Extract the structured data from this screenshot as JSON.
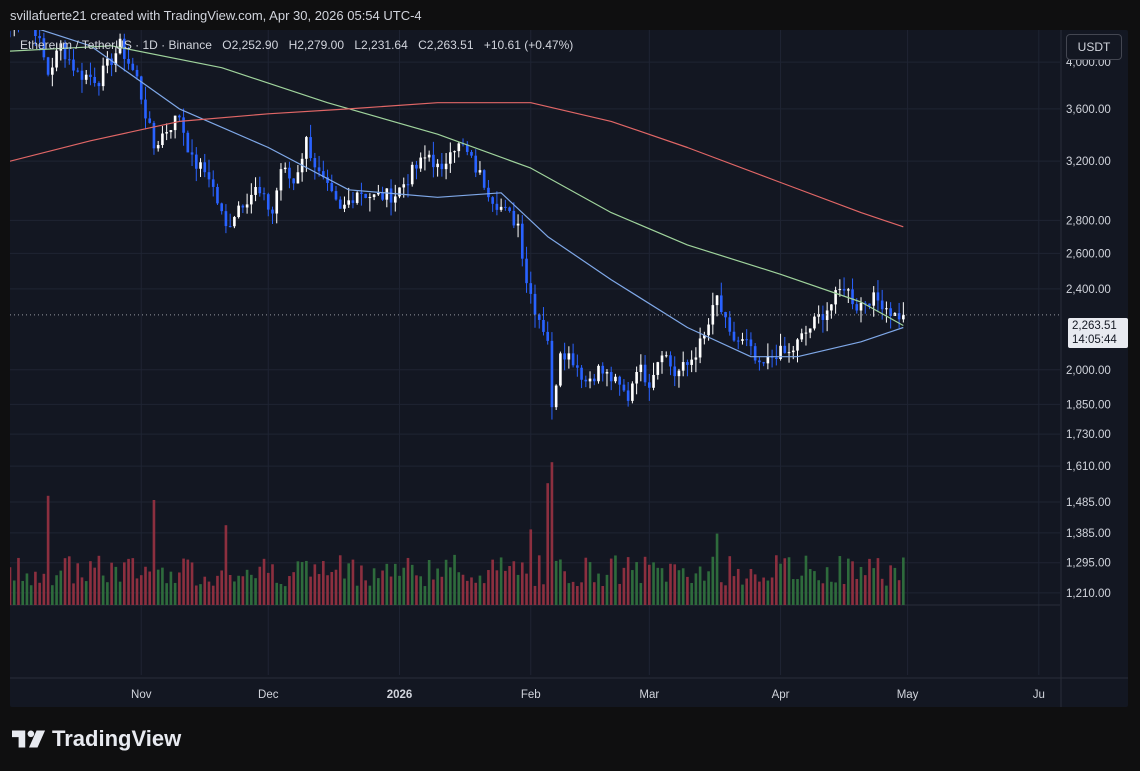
{
  "header": {
    "attribution": "svillafuerte21 created with TradingView.com, Apr 30, 2026 05:54 UTC-4"
  },
  "legend": {
    "symbol": "Ethereum / TetherUS · 1D · Binance",
    "open_label": "O",
    "open": "2,252.90",
    "high_label": "H",
    "high": "2,279.00",
    "low_label": "L",
    "low": "2,231.64",
    "close_label": "C",
    "close": "2,263.51",
    "change": "+10.61 (+0.47%)"
  },
  "currency": "USDT",
  "price_tag": {
    "price": "2,263.51",
    "countdown": "14:05:44"
  },
  "brand": {
    "name": "TradingView",
    "icon": "tradingview-logo-icon"
  },
  "colors": {
    "background": "#131722",
    "up": "#2962ff",
    "down": "#ffffff",
    "volume_up": "#2e6b3c",
    "volume_down": "#8c2f3f",
    "ma_fast": "#7fa8e8",
    "ma_mid": "#9fd39c",
    "ma_slow": "#e06666"
  },
  "chart_data": {
    "type": "candlestick",
    "scale": "log",
    "ylim": [
      1180,
      4300
    ],
    "y_ticks": [
      4000,
      3600,
      3200,
      2800,
      2600,
      2400,
      2000,
      1850,
      1730,
      1610,
      1485,
      1385,
      1295,
      1210
    ],
    "y_tick_labels": [
      "4,000.00",
      "3,600.00",
      "3,200.00",
      "2,800.00",
      "2,600.00",
      "2,400.00",
      "2,000.00",
      "1,850.00",
      "1,730.00",
      "1,610.00",
      "1,485.00",
      "1,385.00",
      "1,295.00",
      "1,210.00"
    ],
    "x_start": "2025-10-01",
    "x_end": "2026-06-06",
    "x_ticks": [
      {
        "date": "2025-11-01",
        "label": "Nov"
      },
      {
        "date": "2025-12-01",
        "label": "Dec"
      },
      {
        "date": "2026-01-01",
        "label": "2026"
      },
      {
        "date": "2026-02-01",
        "label": "Feb"
      },
      {
        "date": "2026-03-01",
        "label": "Mar"
      },
      {
        "date": "2026-04-01",
        "label": "Apr"
      },
      {
        "date": "2026-05-01",
        "label": "May"
      },
      {
        "date": "2026-06-01",
        "label": "Ju"
      }
    ],
    "last_price": 2263.51,
    "close_anchors": [
      [
        "2025-10-01",
        4350
      ],
      [
        "2025-10-06",
        4450
      ],
      [
        "2025-10-10",
        3900
      ],
      [
        "2025-10-13",
        4150
      ],
      [
        "2025-10-17",
        3900
      ],
      [
        "2025-10-22",
        3850
      ],
      [
        "2025-10-27",
        4150
      ],
      [
        "2025-10-31",
        3850
      ],
      [
        "2025-11-04",
        3300
      ],
      [
        "2025-11-06",
        3400
      ],
      [
        "2025-11-10",
        3550
      ],
      [
        "2025-11-13",
        3200
      ],
      [
        "2025-11-17",
        3100
      ],
      [
        "2025-11-21",
        2750
      ],
      [
        "2025-11-24",
        2900
      ],
      [
        "2025-11-28",
        3000
      ],
      [
        "2025-12-02",
        2850
      ],
      [
        "2025-12-04",
        3150
      ],
      [
        "2025-12-07",
        3050
      ],
      [
        "2025-12-10",
        3350
      ],
      [
        "2025-12-13",
        3100
      ],
      [
        "2025-12-18",
        2850
      ],
      [
        "2025-12-22",
        3000
      ],
      [
        "2025-12-26",
        2950
      ],
      [
        "2025-12-31",
        2970
      ],
      [
        "2026-01-04",
        3120
      ],
      [
        "2026-01-08",
        3250
      ],
      [
        "2026-01-11",
        3100
      ],
      [
        "2026-01-13",
        3320
      ],
      [
        "2026-01-16",
        3300
      ],
      [
        "2026-01-20",
        3100
      ],
      [
        "2026-01-23",
        2950
      ],
      [
        "2026-01-26",
        2850
      ],
      [
        "2026-01-29",
        2780
      ],
      [
        "2026-01-31",
        2450
      ],
      [
        "2026-02-02",
        2300
      ],
      [
        "2026-02-05",
        2150
      ],
      [
        "2026-02-06",
        1820
      ],
      [
        "2026-02-08",
        2100
      ],
      [
        "2026-02-11",
        2050
      ],
      [
        "2026-02-14",
        1950
      ],
      [
        "2026-02-17",
        2000
      ],
      [
        "2026-02-20",
        1960
      ],
      [
        "2026-02-24",
        1880
      ],
      [
        "2026-02-26",
        2020
      ],
      [
        "2026-03-01",
        1950
      ],
      [
        "2026-03-04",
        2100
      ],
      [
        "2026-03-07",
        1980
      ],
      [
        "2026-03-10",
        2020
      ],
      [
        "2026-03-14",
        2150
      ],
      [
        "2026-03-17",
        2350
      ],
      [
        "2026-03-20",
        2150
      ],
      [
        "2026-03-24",
        2120
      ],
      [
        "2026-03-27",
        2000
      ],
      [
        "2026-03-31",
        2080
      ],
      [
        "2026-04-03",
        2070
      ],
      [
        "2026-04-06",
        2150
      ],
      [
        "2026-04-10",
        2250
      ],
      [
        "2026-04-13",
        2320
      ],
      [
        "2026-04-16",
        2420
      ],
      [
        "2026-04-19",
        2310
      ],
      [
        "2026-04-22",
        2350
      ],
      [
        "2026-04-25",
        2330
      ],
      [
        "2026-04-28",
        2260
      ],
      [
        "2026-04-30",
        2263.51
      ]
    ],
    "moving_averages": [
      {
        "color_key": "ma_fast",
        "points": [
          [
            "2025-10-01",
            4400
          ],
          [
            "2025-10-20",
            4150
          ],
          [
            "2025-11-10",
            3600
          ],
          [
            "2025-12-01",
            3300
          ],
          [
            "2025-12-20",
            3000
          ],
          [
            "2026-01-10",
            2950
          ],
          [
            "2026-01-25",
            2980
          ],
          [
            "2026-02-05",
            2700
          ],
          [
            "2026-02-20",
            2450
          ],
          [
            "2026-03-10",
            2200
          ],
          [
            "2026-03-25",
            2060
          ],
          [
            "2026-04-05",
            2060
          ],
          [
            "2026-04-20",
            2130
          ],
          [
            "2026-04-30",
            2200
          ]
        ]
      },
      {
        "color_key": "ma_mid",
        "points": [
          [
            "2025-10-01",
            4100
          ],
          [
            "2025-10-25",
            4150
          ],
          [
            "2025-11-20",
            3950
          ],
          [
            "2025-12-15",
            3650
          ],
          [
            "2026-01-10",
            3400
          ],
          [
            "2026-02-01",
            3150
          ],
          [
            "2026-02-20",
            2850
          ],
          [
            "2026-03-10",
            2650
          ],
          [
            "2026-04-01",
            2480
          ],
          [
            "2026-04-20",
            2330
          ],
          [
            "2026-04-30",
            2210
          ]
        ]
      },
      {
        "color_key": "ma_slow",
        "points": [
          [
            "2025-10-01",
            3200
          ],
          [
            "2025-10-20",
            3350
          ],
          [
            "2025-11-10",
            3500
          ],
          [
            "2025-12-01",
            3560
          ],
          [
            "2025-12-20",
            3600
          ],
          [
            "2026-01-10",
            3650
          ],
          [
            "2026-02-01",
            3650
          ],
          [
            "2026-02-20",
            3500
          ],
          [
            "2026-03-10",
            3300
          ],
          [
            "2026-04-01",
            3050
          ],
          [
            "2026-04-20",
            2850
          ],
          [
            "2026-04-30",
            2760
          ]
        ]
      }
    ],
    "volume_spikes": [
      [
        "2025-10-10",
        2.6
      ],
      [
        "2025-11-04",
        2.5
      ],
      [
        "2025-11-21",
        1.9
      ],
      [
        "2026-01-20",
        0.7
      ],
      [
        "2026-02-01",
        1.8
      ],
      [
        "2026-02-05",
        2.9
      ],
      [
        "2026-02-06",
        3.4
      ],
      [
        "2026-03-17",
        1.7
      ]
    ]
  }
}
